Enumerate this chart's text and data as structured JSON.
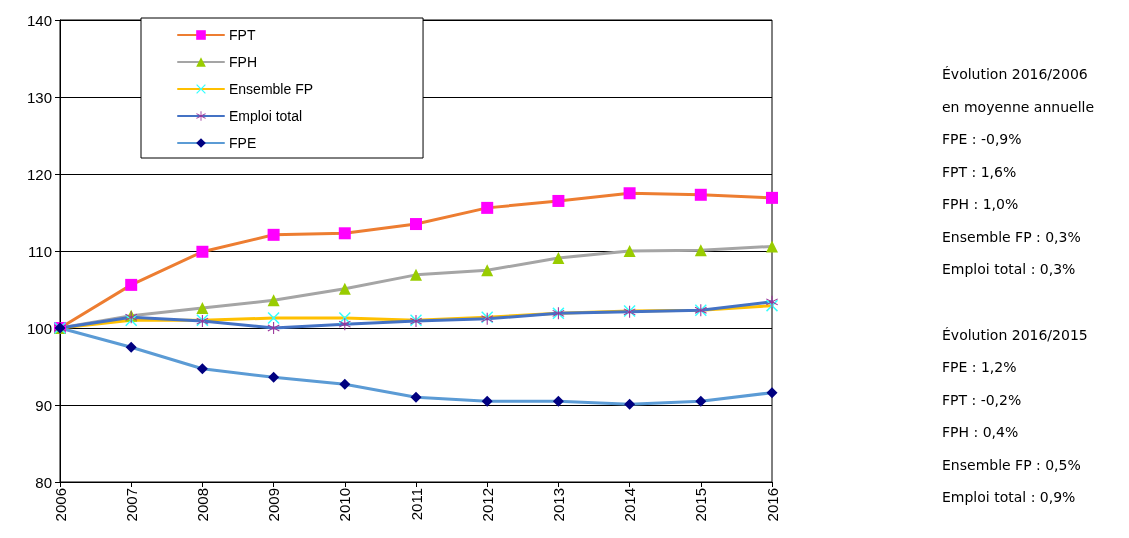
{
  "chart_data": {
    "type": "line",
    "categories": [
      "2006",
      "2007",
      "2008",
      "2009",
      "2010",
      "2011",
      "2012",
      "2013",
      "2014",
      "2015",
      "2016"
    ],
    "series": [
      {
        "name": "FPT",
        "color": "#ed7d31",
        "colors": [
          "#ff00ff",
          "#ff00ff",
          "#ff00ff",
          "#ff00ff",
          "#ff00ff",
          "#ff00ff",
          "#ff00ff",
          "#ff00ff",
          "#ff00ff",
          "#ff00ff",
          "#ff00ff"
        ],
        "marker": "square",
        "values": [
          100,
          105.6,
          109.9,
          112.1,
          112.3,
          113.5,
          115.6,
          116.5,
          117.5,
          117.3,
          116.9
        ]
      },
      {
        "name": "FPH",
        "color": "#a5a5a5",
        "colors": [
          "#99cc00",
          "#99cc00",
          "#99cc00",
          "#99cc00",
          "#99cc00",
          "#99cc00",
          "#99cc00",
          "#99cc00",
          "#99cc00",
          "#99cc00",
          "#99cc00"
        ],
        "marker": "triangle",
        "values": [
          100,
          101.6,
          102.6,
          103.6,
          105.1,
          106.9,
          107.5,
          109.1,
          110.0,
          110.1,
          110.6
        ]
      },
      {
        "name": "Ensemble FP",
        "color": "#ffc000",
        "colors": [
          "#33ffff",
          "#33ffff",
          "#33ffff",
          "#33ffff",
          "#33ffff",
          "#33ffff",
          "#33ffff",
          "#33ffff",
          "#33ffff",
          "#33ffff",
          "#33ffff"
        ],
        "marker": "cross",
        "values": [
          100,
          101.0,
          101.0,
          101.3,
          101.3,
          101.0,
          101.4,
          101.9,
          102.2,
          102.3,
          102.9
        ]
      },
      {
        "name": "Emploi total",
        "color": "#4472c4",
        "colors": [
          "#993399",
          "#993399",
          "#993399",
          "#993399",
          "#993399",
          "#993399",
          "#993399",
          "#993399",
          "#993399",
          "#993399",
          "#993399"
        ],
        "marker": "star",
        "values": [
          100,
          101.4,
          100.9,
          100.0,
          100.5,
          100.9,
          101.2,
          101.9,
          102.1,
          102.3,
          103.4
        ]
      },
      {
        "name": "FPE",
        "color": "#5b9bd5",
        "colors": [
          "#000080",
          "#000080",
          "#000080",
          "#000080",
          "#000080",
          "#000080",
          "#000080",
          "#000080",
          "#000080",
          "#000080",
          "#000080"
        ],
        "marker": "diamond",
        "values": [
          100,
          97.5,
          94.7,
          93.6,
          92.7,
          91.0,
          90.5,
          90.5,
          90.1,
          90.5,
          91.6
        ]
      }
    ],
    "ylim": [
      80,
      140
    ],
    "yticks": [
      80,
      90,
      100,
      110,
      120,
      130,
      140
    ],
    "grid": "y",
    "legend": "top left",
    "annotations": [
      "Évolution 2016/2006\nen moyenne annuelle\nFPE : -0,9%\nFPT : 1,6%\nFPH : 1,0%\nEnsemble FP : 0,3%\nEmploi total : 0,3%",
      "Évolution 2016/2015\nFPE : 1,2%\nFPT : -0,2%\nFPH : 0,4%\nEnsemble FP : 0,5%\nEmploi total : 0,9%"
    ]
  }
}
